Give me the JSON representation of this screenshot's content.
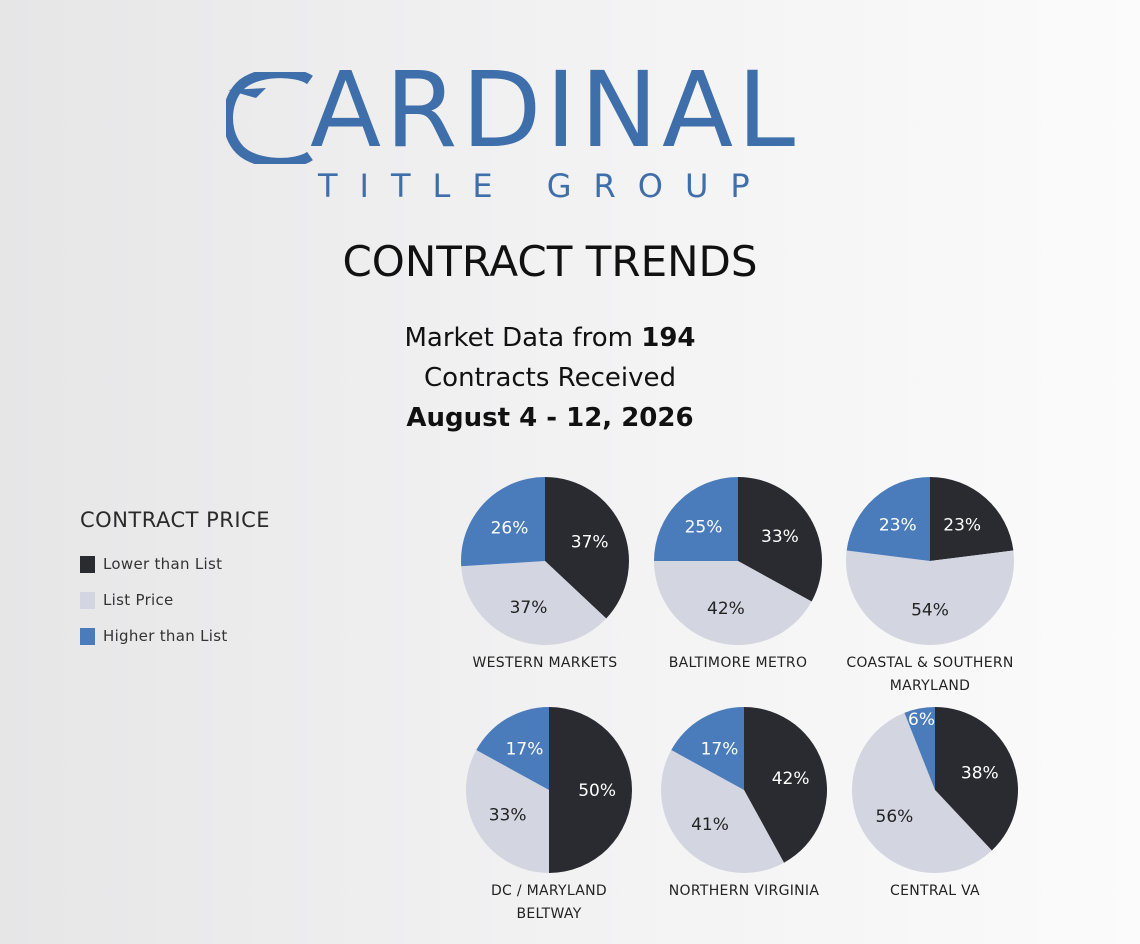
{
  "brand": {
    "name": "CARDINAL",
    "name_rest": "ARDINAL",
    "subtitle": "TITLE GROUP",
    "color": "#3f6faa"
  },
  "header": {
    "title": "CONTRACT TRENDS",
    "line1_prefix": "Market Data from ",
    "line1_count": "194",
    "line2": "Contracts Received",
    "line3": "August 4 - 12, 2026"
  },
  "legend": {
    "title": "CONTRACT PRICE",
    "items": [
      {
        "label": "Lower than List",
        "color": "#2a2b30"
      },
      {
        "label": "List Price",
        "color": "#d3d6e1"
      },
      {
        "label": "Higher than List",
        "color": "#4a7cbc"
      }
    ]
  },
  "chart_data": {
    "type": "pie",
    "title": "CONTRACT PRICE",
    "series_names": [
      "Lower than List",
      "List Price",
      "Higher than List"
    ],
    "colors": [
      "#2a2b30",
      "#d3d6e1",
      "#4a7cbc"
    ],
    "charts": [
      {
        "caption": [
          "WESTERN MARKETS"
        ],
        "values": [
          37,
          37,
          26
        ]
      },
      {
        "caption": [
          "BALTIMORE METRO"
        ],
        "values": [
          33,
          42,
          25
        ]
      },
      {
        "caption": [
          "COASTAL & SOUTHERN",
          "MARYLAND"
        ],
        "values": [
          23,
          54,
          23
        ]
      },
      {
        "caption": [
          "DC / MARYLAND",
          "BELTWAY"
        ],
        "values": [
          50,
          33,
          17
        ]
      },
      {
        "caption": [
          "NORTHERN VIRGINIA"
        ],
        "values": [
          42,
          41,
          17
        ]
      },
      {
        "caption": [
          "CENTRAL VA"
        ],
        "values": [
          38,
          56,
          6
        ]
      }
    ]
  }
}
